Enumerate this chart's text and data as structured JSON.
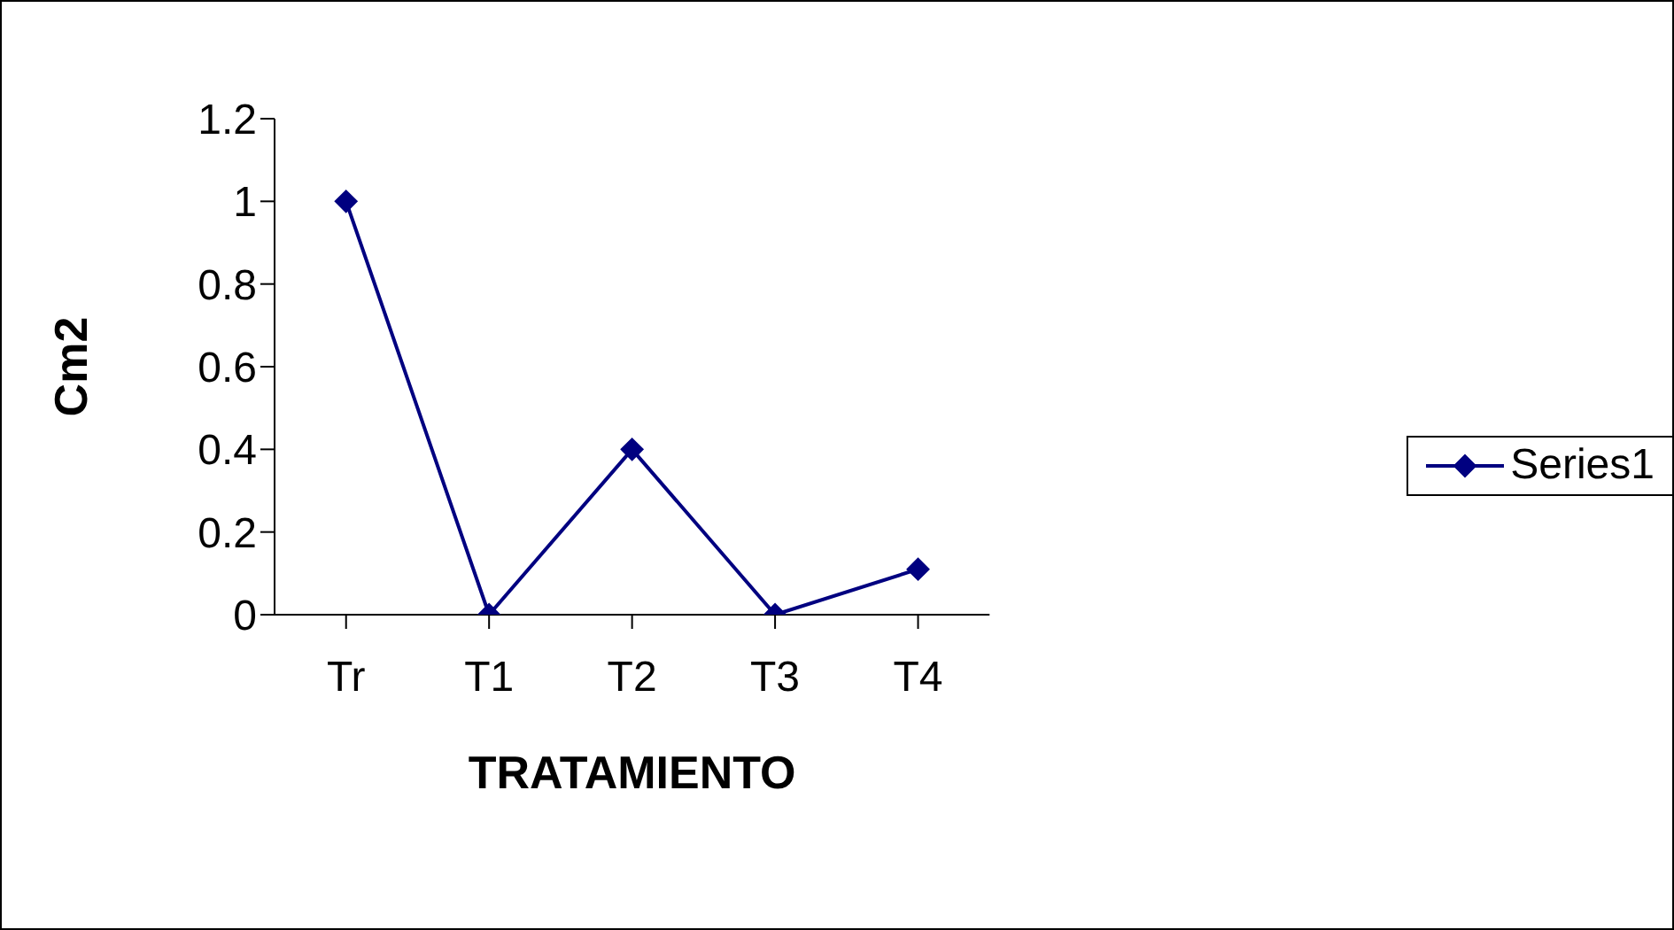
{
  "chart_data": {
    "type": "line",
    "xlabel": "TRATAMIENTO",
    "ylabel": "Cm2",
    "categories": [
      "Tr",
      "T1",
      "T2",
      "T3",
      "T4"
    ],
    "series": [
      {
        "name": "Series1",
        "color": "#000080",
        "values": [
          1,
          0,
          0.4,
          0,
          0.11
        ]
      }
    ],
    "ylim": [
      0,
      1.2
    ],
    "yticks": [
      0,
      0.2,
      0.4,
      0.6,
      0.8,
      1,
      1.2
    ],
    "legend": "right",
    "marker": "diamond",
    "line_style": "solid"
  }
}
